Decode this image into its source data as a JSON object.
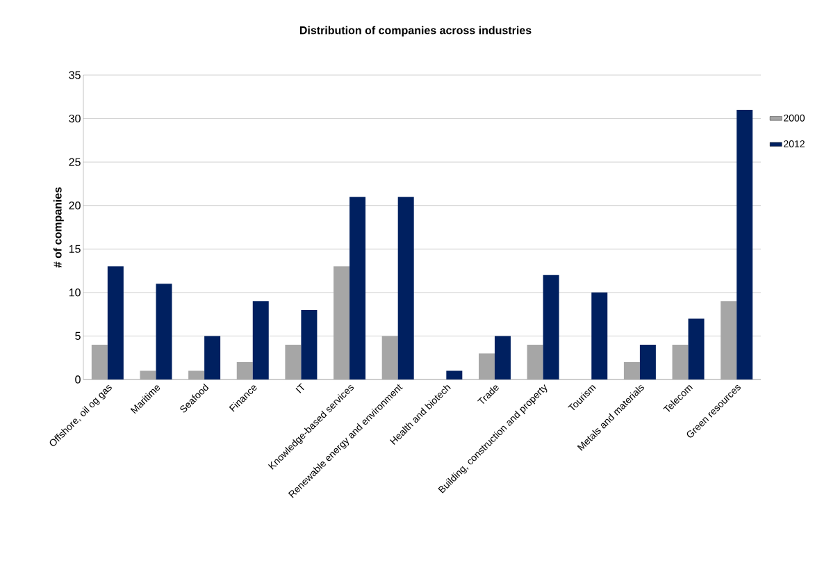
{
  "chart_data": {
    "type": "bar",
    "title": "Distribution of companies across industries",
    "ylabel": "# of companies",
    "categories": [
      "Offshore, oil og gas",
      "Maritime",
      "Seafood",
      "Finance",
      "IT",
      "Knowledge-based services",
      "Renewable energy and environment",
      "Health and biotech",
      "Trade",
      "Building, construction and property",
      "Tourism",
      "Metals and materials",
      "Telecom",
      "Green resources"
    ],
    "series": [
      {
        "name": "2000",
        "color": "#a6a6a6",
        "values": [
          4,
          1,
          1,
          2,
          4,
          13,
          5,
          0,
          3,
          4,
          0,
          2,
          4,
          9
        ]
      },
      {
        "name": "2012",
        "color": "#002060",
        "values": [
          13,
          11,
          5,
          9,
          8,
          21,
          21,
          1,
          5,
          12,
          10,
          4,
          7,
          31
        ]
      }
    ],
    "ylim": [
      0,
      35
    ],
    "yticks": [
      0,
      5,
      10,
      15,
      20,
      25,
      30,
      35
    ],
    "grid": "y",
    "legend": "right"
  }
}
